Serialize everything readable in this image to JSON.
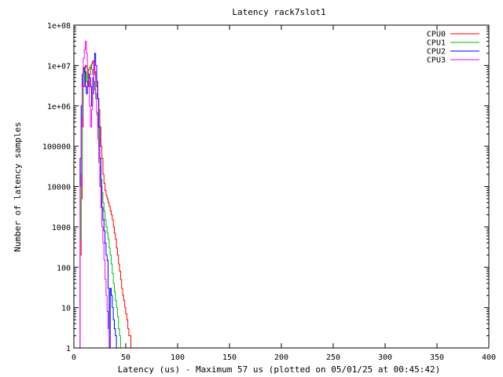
{
  "chart_data": {
    "type": "line",
    "title": "Latency rack7slot1",
    "xlabel": "Latency (us) - Maximum 57 us (plotted on 05/01/25 at 00:45:42)",
    "ylabel": "Number of latency samples",
    "xlim": [
      0,
      400
    ],
    "ylim": [
      1,
      100000000
    ],
    "yscale": "log",
    "xticks": [
      0,
      50,
      100,
      150,
      200,
      250,
      300,
      350,
      400
    ],
    "yticks": [
      1,
      10,
      100,
      1000,
      10000,
      100000,
      1000000,
      10000000,
      100000000
    ],
    "ytick_labels": [
      "1",
      "10",
      "100",
      "1000",
      "10000",
      "100000",
      "1e+06",
      "1e+07",
      "1e+08"
    ],
    "grid": false,
    "legend_position": "top-right",
    "series": [
      {
        "name": "CPU0",
        "color": "#ff0000",
        "points": [
          [
            5,
            1
          ],
          [
            6,
            200
          ],
          [
            7,
            5000
          ],
          [
            8,
            300000
          ],
          [
            9,
            3000000
          ],
          [
            10,
            8000000
          ],
          [
            11,
            10000000
          ],
          [
            12,
            9000000
          ],
          [
            13,
            5000000
          ],
          [
            14,
            3000000
          ],
          [
            15,
            6000000
          ],
          [
            16,
            9000000
          ],
          [
            17,
            11000000
          ],
          [
            18,
            13000000
          ],
          [
            19,
            10000000
          ],
          [
            20,
            7000000
          ],
          [
            21,
            5000000
          ],
          [
            22,
            3000000
          ],
          [
            23,
            1500000
          ],
          [
            24,
            800000
          ],
          [
            25,
            300000
          ],
          [
            26,
            100000
          ],
          [
            27,
            50000
          ],
          [
            28,
            20000
          ],
          [
            29,
            12000
          ],
          [
            30,
            8000
          ],
          [
            31,
            6000
          ],
          [
            32,
            5000
          ],
          [
            33,
            4000
          ],
          [
            34,
            3200
          ],
          [
            35,
            2500
          ],
          [
            36,
            2000
          ],
          [
            37,
            1500
          ],
          [
            38,
            1000
          ],
          [
            39,
            700
          ],
          [
            40,
            500
          ],
          [
            41,
            300
          ],
          [
            42,
            200
          ],
          [
            43,
            120
          ],
          [
            44,
            80
          ],
          [
            45,
            50
          ],
          [
            46,
            30
          ],
          [
            47,
            20
          ],
          [
            48,
            15
          ],
          [
            49,
            10
          ],
          [
            50,
            7
          ],
          [
            51,
            5
          ],
          [
            52,
            3
          ],
          [
            53,
            2
          ],
          [
            54,
            2
          ],
          [
            55,
            1
          ],
          [
            56,
            1
          ],
          [
            57,
            1
          ]
        ]
      },
      {
        "name": "CPU1",
        "color": "#00c000",
        "points": [
          [
            5,
            1
          ],
          [
            6,
            500
          ],
          [
            7,
            20000
          ],
          [
            8,
            500000
          ],
          [
            9,
            4000000
          ],
          [
            10,
            9000000
          ],
          [
            11,
            7000000
          ],
          [
            12,
            4000000
          ],
          [
            13,
            6000000
          ],
          [
            14,
            8000000
          ],
          [
            15,
            9000000
          ],
          [
            16,
            10000000
          ],
          [
            17,
            8000000
          ],
          [
            18,
            6000000
          ],
          [
            19,
            4000000
          ],
          [
            20,
            2500000
          ],
          [
            21,
            1500000
          ],
          [
            22,
            700000
          ],
          [
            23,
            300000
          ],
          [
            24,
            100000
          ],
          [
            25,
            30000
          ],
          [
            26,
            15000
          ],
          [
            27,
            7000
          ],
          [
            28,
            4000
          ],
          [
            29,
            2500
          ],
          [
            30,
            1500
          ],
          [
            31,
            1000
          ],
          [
            32,
            700
          ],
          [
            33,
            500
          ],
          [
            34,
            300
          ],
          [
            35,
            200
          ],
          [
            36,
            120
          ],
          [
            37,
            70
          ],
          [
            38,
            40
          ],
          [
            39,
            25
          ],
          [
            40,
            15
          ],
          [
            41,
            10
          ],
          [
            42,
            6
          ],
          [
            43,
            3
          ],
          [
            44,
            2
          ],
          [
            45,
            1
          ]
        ]
      },
      {
        "name": "CPU2",
        "color": "#0000ff",
        "points": [
          [
            5,
            1
          ],
          [
            6,
            50000
          ],
          [
            7,
            1000000
          ],
          [
            8,
            6000000
          ],
          [
            9,
            9000000
          ],
          [
            10,
            7000000
          ],
          [
            11,
            3000000
          ],
          [
            12,
            2000000
          ],
          [
            13,
            4000000
          ],
          [
            14,
            6000000
          ],
          [
            15,
            5000000
          ],
          [
            16,
            3000000
          ],
          [
            17,
            1000000
          ],
          [
            18,
            2000000
          ],
          [
            19,
            8000000
          ],
          [
            20,
            20000000
          ],
          [
            21,
            10000000
          ],
          [
            22,
            4000000
          ],
          [
            23,
            1500000
          ],
          [
            24,
            300000
          ],
          [
            25,
            50000
          ],
          [
            26,
            10000
          ],
          [
            27,
            3000
          ],
          [
            28,
            1500
          ],
          [
            29,
            800
          ],
          [
            30,
            400
          ],
          [
            31,
            200
          ],
          [
            32,
            150
          ],
          [
            33,
            30
          ],
          [
            34,
            1
          ],
          [
            35,
            30
          ],
          [
            36,
            20
          ],
          [
            37,
            10
          ],
          [
            38,
            5
          ],
          [
            39,
            3
          ],
          [
            40,
            2
          ],
          [
            41,
            1
          ]
        ]
      },
      {
        "name": "CPU3",
        "color": "#ff00ff",
        "points": [
          [
            5,
            1
          ],
          [
            6,
            10000
          ],
          [
            7,
            300000
          ],
          [
            8,
            3000000
          ],
          [
            9,
            15000000
          ],
          [
            10,
            25000000
          ],
          [
            11,
            40000000
          ],
          [
            12,
            20000000
          ],
          [
            13,
            8000000
          ],
          [
            14,
            4000000
          ],
          [
            15,
            1000000
          ],
          [
            16,
            300000
          ],
          [
            17,
            800000
          ],
          [
            18,
            5000000
          ],
          [
            19,
            12000000
          ],
          [
            20,
            6000000
          ],
          [
            21,
            2000000
          ],
          [
            22,
            600000
          ],
          [
            23,
            150000
          ],
          [
            24,
            40000
          ],
          [
            25,
            10000
          ],
          [
            26,
            3000
          ],
          [
            27,
            1000
          ],
          [
            28,
            400
          ],
          [
            29,
            150
          ],
          [
            30,
            50
          ],
          [
            31,
            20
          ],
          [
            32,
            8
          ],
          [
            33,
            3
          ],
          [
            34,
            1
          ]
        ]
      }
    ]
  }
}
